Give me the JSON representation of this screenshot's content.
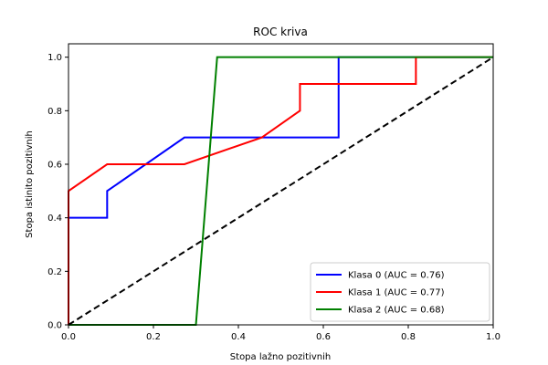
{
  "chart_data": {
    "type": "line",
    "title": "ROC kriva",
    "xlabel": "Stopa lažno pozitivnih",
    "ylabel": "Stopa istinito pozitivnih",
    "xlim": [
      0,
      1
    ],
    "ylim": [
      0,
      1.05
    ],
    "xticks": [
      0.0,
      0.2,
      0.4,
      0.6,
      0.8,
      1.0
    ],
    "yticks": [
      0.0,
      0.2,
      0.4,
      0.6,
      0.8,
      1.0
    ],
    "grid": false,
    "legend_position": "bottom-right",
    "series": [
      {
        "name": "Klasa 0 (AUC = 0.76)",
        "color": "#0000ff",
        "x": [
          0.0,
          0.0,
          0.0,
          0.091,
          0.091,
          0.273,
          0.636,
          0.636,
          1.0
        ],
        "y": [
          0.0,
          0.0,
          0.4,
          0.4,
          0.5,
          0.7,
          0.7,
          1.0,
          1.0
        ]
      },
      {
        "name": "Klasa 1 (AUC = 0.77)",
        "color": "#ff0000",
        "x": [
          0.0,
          0.0,
          0.091,
          0.273,
          0.455,
          0.545,
          0.545,
          0.818,
          0.818,
          1.0
        ],
        "y": [
          0.0,
          0.5,
          0.6,
          0.6,
          0.7,
          0.8,
          0.9,
          0.9,
          1.0,
          1.0
        ]
      },
      {
        "name": "Klasa 2 (AUC = 0.68)",
        "color": "#008000",
        "x": [
          0.0,
          0.0,
          0.3,
          0.35,
          0.35,
          1.0
        ],
        "y": [
          0.0,
          0.0,
          0.0,
          1.0,
          1.0,
          1.0
        ]
      }
    ],
    "reference_line": {
      "color": "#000000",
      "style": "dashed",
      "x": [
        0,
        1
      ],
      "y": [
        0,
        1
      ]
    }
  }
}
